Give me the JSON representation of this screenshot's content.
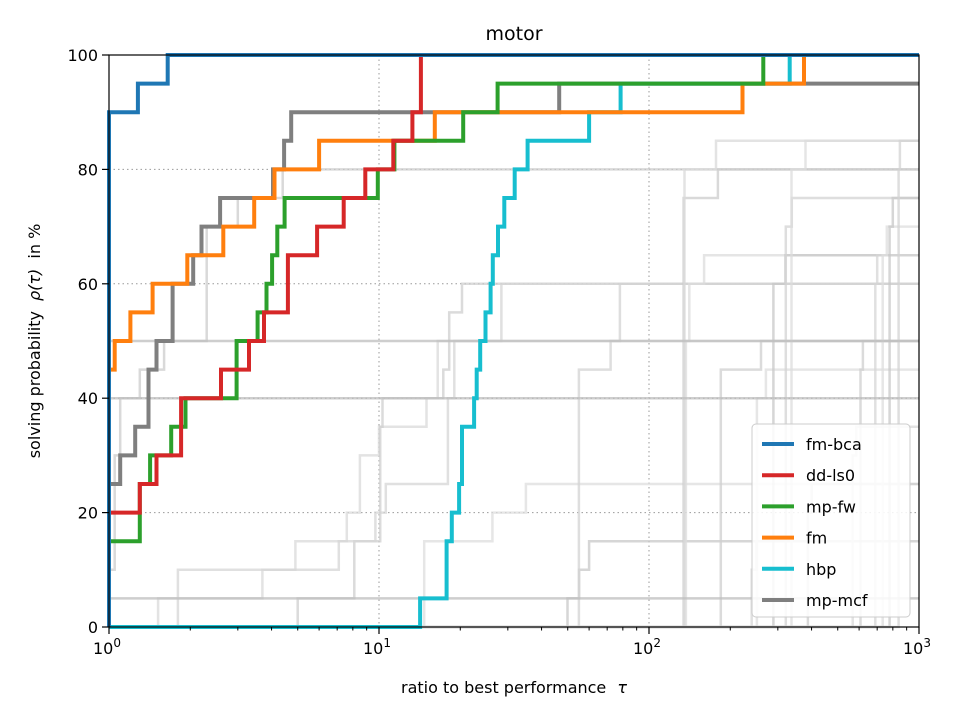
{
  "chart_data": {
    "type": "line",
    "title": "motor",
    "xlabel": "ratio to best performance",
    "xlabel_symbol": "τ",
    "ylabel": "solving probability",
    "ylabel_symbol": "ρ(τ)",
    "ylabel_suffix": "in %",
    "xscale": "log",
    "xlim": [
      1,
      1000
    ],
    "ylim": [
      0,
      100
    ],
    "x_ticks": [
      {
        "value": 1,
        "base": "10",
        "exp": "0"
      },
      {
        "value": 10,
        "base": "10",
        "exp": "1"
      },
      {
        "value": 100,
        "base": "10",
        "exp": "2"
      },
      {
        "value": 1000,
        "base": "10",
        "exp": "3"
      }
    ],
    "y_ticks": [
      0,
      20,
      40,
      60,
      80,
      100
    ],
    "grid": "dotted",
    "legend_position": "bottom-right",
    "series": [
      {
        "name": "fm-bca",
        "color": "#1f77b4",
        "x": [
          1,
          1,
          1.28,
          1.65,
          1000
        ],
        "y": [
          0,
          90,
          95,
          100,
          100
        ]
      },
      {
        "name": "dd-ls0",
        "color": "#d62728",
        "x": [
          1,
          1.3,
          1.5,
          1.85,
          2.6,
          3.3,
          3.75,
          4.6,
          5.9,
          7.4,
          8.9,
          11.3,
          13.3,
          14.3
        ],
        "y": [
          20,
          25,
          30,
          40,
          45,
          50,
          55,
          65,
          70,
          75,
          80,
          85,
          90,
          100
        ]
      },
      {
        "name": "mp-fw",
        "color": "#2ca02c",
        "x": [
          1,
          1.3,
          1.42,
          1.7,
          1.92,
          2.97,
          3.55,
          3.83,
          4.02,
          4.2,
          4.47,
          5.7,
          7.9,
          9.9,
          11.4,
          16.3,
          20.5,
          27.5,
          46,
          132,
          232,
          265,
          300,
          1000
        ],
        "y": [
          15,
          25,
          30,
          35,
          40,
          50,
          55,
          60,
          65,
          70,
          75,
          75,
          75,
          80,
          85,
          85,
          90,
          95,
          95,
          95,
          95,
          100,
          100,
          100
        ]
      },
      {
        "name": "fm",
        "color": "#ff7f0e",
        "x": [
          1,
          1.05,
          1.2,
          1.45,
          1.95,
          2.65,
          3.45,
          4.1,
          6,
          8.9,
          16.1,
          26.9,
          222,
          325,
          375,
          1000
        ],
        "y": [
          45,
          50,
          55,
          60,
          65,
          70,
          75,
          80,
          85,
          85,
          90,
          90,
          95,
          95,
          100,
          100
        ]
      },
      {
        "name": "hbp",
        "color": "#17becf",
        "x": [
          1,
          14.2,
          17.8,
          18.6,
          19.8,
          20.3,
          22.5,
          23,
          23.7,
          24.8,
          25.9,
          26.4,
          27.6,
          29.1,
          31.8,
          32.5,
          35.5,
          60,
          78.5,
          332,
          1000
        ],
        "y": [
          0,
          5,
          15,
          20,
          25,
          35,
          40,
          45,
          50,
          55,
          60,
          65,
          70,
          75,
          80,
          80,
          85,
          90,
          95,
          100,
          100
        ]
      },
      {
        "name": "mp-mcf",
        "color": "#7f7f7f",
        "x": [
          1,
          1.1,
          1.25,
          1.4,
          1.5,
          1.72,
          2.05,
          2.2,
          2.58,
          4.05,
          4.45,
          4.73,
          14.7,
          46.5,
          270,
          1000
        ],
        "y": [
          25,
          30,
          35,
          45,
          50,
          60,
          65,
          70,
          75,
          80,
          85,
          90,
          90,
          95,
          95,
          95
        ]
      }
    ],
    "background_lines": [
      {
        "color": "#cccccc",
        "x": [
          1,
          1.05,
          1.1,
          1.3,
          1.6,
          2.3,
          3,
          3.5,
          4.4,
          1000
        ],
        "y": [
          10,
          30,
          40,
          45,
          50,
          70,
          75,
          75,
          80,
          80
        ]
      },
      {
        "color": "#d9d9d9",
        "x": [
          1,
          1.52,
          3.7,
          4.9,
          7.6,
          8.5,
          10,
          15,
          16.5,
          1000
        ],
        "y": [
          0,
          5,
          10,
          15,
          20,
          30,
          35,
          40,
          50,
          50
        ]
      },
      {
        "color": "#cfcfcf",
        "x": [
          1,
          5,
          8.1,
          10.1,
          10.3,
          17.3,
          18.2,
          20.3,
          1000
        ],
        "y": [
          0,
          5,
          15,
          35,
          40,
          45,
          55,
          60,
          60
        ]
      },
      {
        "color": "#d6d6d6",
        "x": [
          1,
          1.8,
          7.1,
          9.7,
          10.6,
          18,
          19,
          28.4,
          1000
        ],
        "y": [
          0,
          10,
          15,
          20,
          25,
          40,
          50,
          60,
          60
        ]
      },
      {
        "color": "#dddddd",
        "x": [
          1,
          14.7,
          26.3,
          35,
          1000
        ],
        "y": [
          0,
          15,
          20,
          25,
          25
        ]
      },
      {
        "color": "#c8c8c8",
        "x": [
          1,
          49.9,
          55.1,
          60,
          1000
        ],
        "y": [
          0,
          5,
          10,
          15,
          15
        ]
      },
      {
        "color": "#d3d3d3",
        "x": [
          1,
          55,
          72.1,
          78,
          1000
        ],
        "y": [
          0,
          45,
          50,
          60,
          60
        ]
      },
      {
        "color": "#dcdcdc",
        "x": [
          1,
          137,
          141,
          160,
          1000
        ],
        "y": [
          0,
          50,
          60,
          65,
          65
        ]
      },
      {
        "color": "#cccccc",
        "x": [
          1,
          134.3,
          180,
          1000
        ],
        "y": [
          0,
          75,
          80,
          80
        ]
      },
      {
        "color": "#d9d9d9",
        "x": [
          1,
          135.3,
          177.1,
          1000
        ],
        "y": [
          0,
          80,
          85,
          85
        ]
      },
      {
        "color": "#cfcfcf",
        "x": [
          1,
          184.5,
          260,
          1000
        ],
        "y": [
          0,
          45,
          50,
          50
        ]
      },
      {
        "color": "#d6d6d6",
        "x": [
          1,
          240,
          250,
          1000
        ],
        "y": [
          0,
          10,
          15,
          15
        ]
      },
      {
        "color": "#dddddd",
        "x": [
          1,
          251,
          271,
          1000
        ],
        "y": [
          0,
          40,
          45,
          45
        ]
      },
      {
        "color": "#c8c8c8",
        "x": [
          1,
          289,
          320,
          1000
        ],
        "y": [
          0,
          60,
          65,
          65
        ]
      },
      {
        "color": "#d3d3d3",
        "x": [
          1,
          321,
          338,
          1000
        ],
        "y": [
          0,
          70,
          75,
          75
        ]
      },
      {
        "color": "#dcdcdc",
        "x": [
          1,
          337.2,
          380,
          1000
        ],
        "y": [
          0,
          80,
          85,
          85
        ]
      },
      {
        "color": "#cccccc",
        "x": [
          1,
          387.8,
          400,
          1000
        ],
        "y": [
          0,
          20,
          25,
          25
        ]
      },
      {
        "color": "#d9d9d9",
        "x": [
          1,
          568,
          586,
          1000
        ],
        "y": [
          0,
          30,
          35,
          35
        ]
      },
      {
        "color": "#cfcfcf",
        "x": [
          1,
          607,
          620,
          1000
        ],
        "y": [
          0,
          45,
          50,
          50
        ]
      },
      {
        "color": "#d6d6d6",
        "x": [
          1,
          689,
          700,
          1000
        ],
        "y": [
          0,
          60,
          65,
          65
        ]
      },
      {
        "color": "#dddddd",
        "x": [
          1,
          734,
          760,
          1000
        ],
        "y": [
          0,
          65,
          70,
          70
        ]
      },
      {
        "color": "#c8c8c8",
        "x": [
          1,
          778,
          800,
          1000
        ],
        "y": [
          0,
          70,
          75,
          75
        ]
      },
      {
        "color": "#d3d3d3",
        "x": [
          1,
          840,
          850,
          1000
        ],
        "y": [
          0,
          80,
          85,
          85
        ]
      },
      {
        "color": "#bdbdbd",
        "x": [
          1,
          1000
        ],
        "y": [
          5,
          5
        ]
      },
      {
        "color": "#bdbdbd",
        "x": [
          1,
          1000
        ],
        "y": [
          40,
          40
        ]
      },
      {
        "color": "#bdbdbd",
        "x": [
          1,
          1000
        ],
        "y": [
          50,
          50
        ]
      }
    ]
  }
}
